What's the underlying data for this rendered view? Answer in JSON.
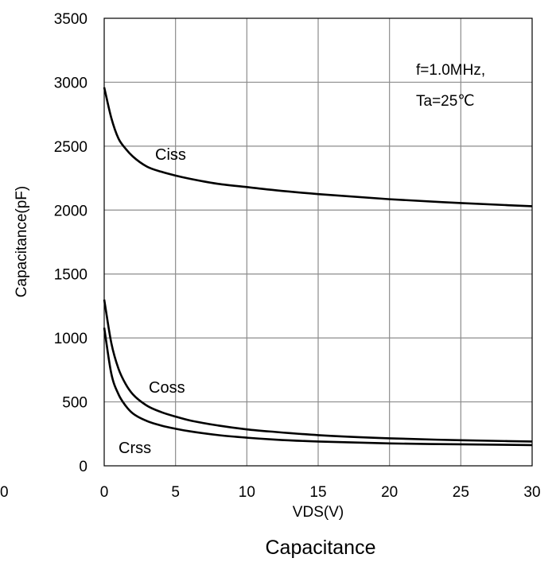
{
  "chart_data": {
    "type": "line",
    "caption": "Capacitance",
    "xlabel": "VDS(V)",
    "ylabel": "Capacitance(pF)",
    "xlim": [
      0,
      30
    ],
    "ylim": [
      0,
      3500
    ],
    "x_ticks": [
      0,
      5,
      10,
      15,
      20,
      25,
      30
    ],
    "y_ticks": [
      0,
      500,
      1000,
      1500,
      2000,
      2500,
      3000,
      3500
    ],
    "stray_tick_label": "0",
    "grid": true,
    "annotations": [
      "f=1.0MHz,",
      "Ta=25℃"
    ],
    "colors": {
      "line": "#000000",
      "grid": "#8c8c8c",
      "frame": "#000000"
    },
    "x": [
      0,
      0.5,
      1,
      1.5,
      2,
      3,
      4,
      5,
      6,
      8,
      10,
      12,
      15,
      20,
      25,
      30
    ],
    "series": [
      {
        "name": "Ciss",
        "values": [
          2960,
          2720,
          2560,
          2480,
          2420,
          2340,
          2300,
          2270,
          2245,
          2205,
          2180,
          2155,
          2125,
          2085,
          2055,
          2030
        ]
      },
      {
        "name": "Coss",
        "values": [
          1300,
          960,
          760,
          640,
          560,
          470,
          420,
          385,
          355,
          315,
          285,
          265,
          240,
          215,
          200,
          190
        ]
      },
      {
        "name": "Crss",
        "values": [
          1080,
          720,
          560,
          470,
          410,
          350,
          315,
          290,
          270,
          240,
          220,
          205,
          190,
          175,
          168,
          162
        ]
      }
    ]
  }
}
